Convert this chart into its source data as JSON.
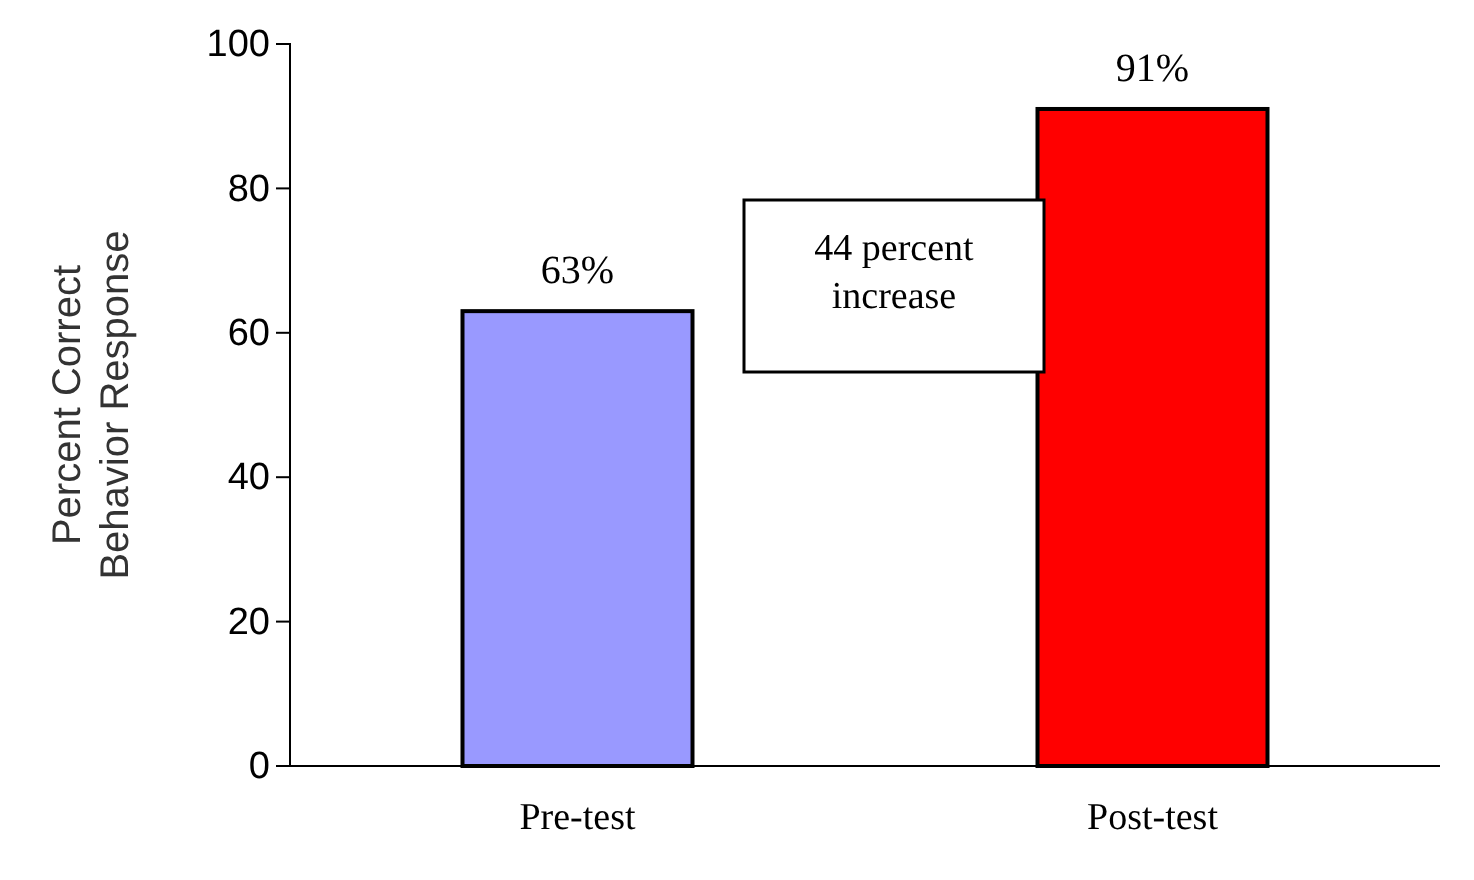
{
  "chart_data": {
    "type": "bar",
    "ylabel": "Percent Correct Behavior Response",
    "categories": [
      "Pre-test",
      "Post-test"
    ],
    "values": [
      63,
      91
    ],
    "colors": [
      "#9999ff",
      "#ff0000"
    ],
    "value_labels": [
      "63%",
      "91%"
    ],
    "ylim": [
      0,
      100
    ],
    "yticks": [
      0,
      20,
      40,
      60,
      80,
      100
    ],
    "annotations": [
      "44 percent increase"
    ],
    "grid": false
  }
}
